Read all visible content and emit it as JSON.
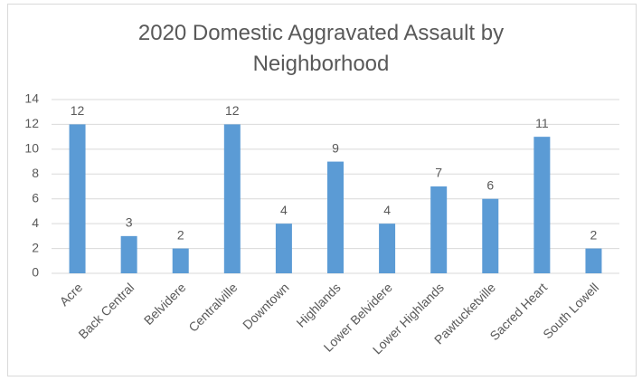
{
  "chart_data": {
    "type": "bar",
    "title": "2020 Domestic Aggravated Assault by Neighborhood",
    "categories": [
      "Acre",
      "Back Central",
      "Belvidere",
      "Centralville",
      "Downtown",
      "Highlands",
      "Lower Belvidere",
      "Lower Highlands",
      "Pawtucketville",
      "Sacred Heart",
      "South Lowell"
    ],
    "values": [
      12,
      3,
      2,
      12,
      4,
      9,
      4,
      7,
      6,
      11,
      2
    ],
    "color": "#5b9bd5",
    "ylim": [
      0,
      14
    ],
    "yticks": [
      0,
      2,
      4,
      6,
      8,
      10,
      12,
      14
    ],
    "grid": true,
    "data_labels": true
  }
}
